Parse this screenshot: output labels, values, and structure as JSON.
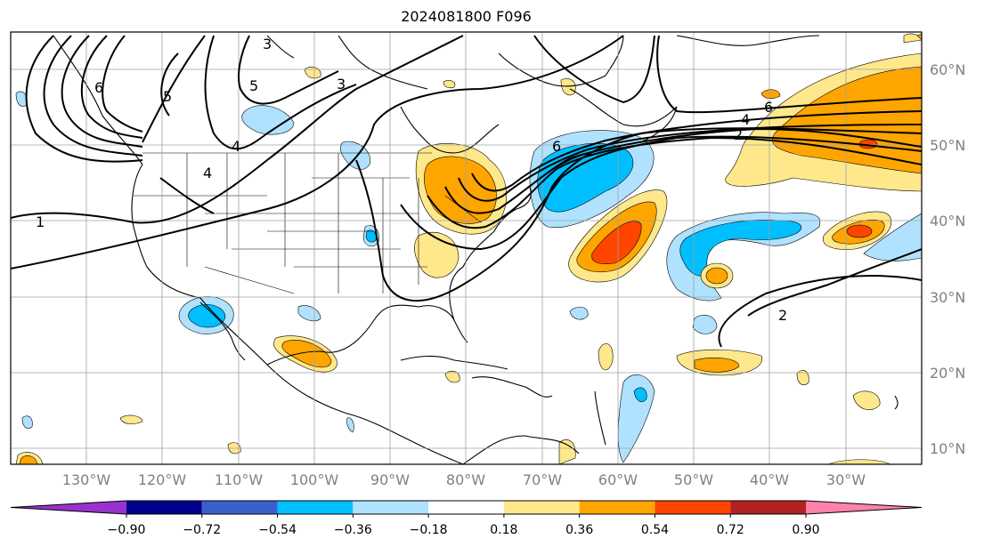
{
  "title": "2024081800 F096",
  "map": {
    "lon_labels": [
      "130°W",
      "120°W",
      "110°W",
      "100°W",
      "90°W",
      "80°W",
      "70°W",
      "60°W",
      "50°W",
      "40°W",
      "30°W"
    ],
    "lat_labels": [
      "60°N",
      "50°N",
      "40°N",
      "30°N",
      "20°N",
      "10°N"
    ],
    "contour_labels": [
      "1",
      "2",
      "3",
      "3",
      "4",
      "4",
      "4",
      "5",
      "5",
      "6",
      "6",
      "6",
      "2"
    ]
  },
  "colorbar": {
    "ticks": [
      "−0.90",
      "−0.72",
      "−0.54",
      "−0.36",
      "−0.18",
      "0.18",
      "0.36",
      "0.54",
      "0.72",
      "0.90"
    ],
    "colors": [
      "#9932cc",
      "#00008b",
      "#3a5fcd",
      "#00bfff",
      "#b0e2ff",
      "#ffffff",
      "#ffe88c",
      "#ffa500",
      "#ff4500",
      "#b22222",
      "#ff82ab"
    ]
  }
}
